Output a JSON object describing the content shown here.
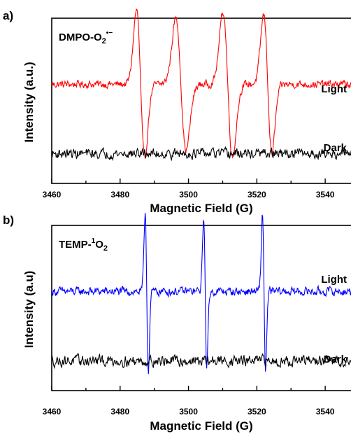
{
  "chart_data": [
    {
      "panel_label": "a)",
      "type": "line",
      "species_label": {
        "base": "DMPO-O",
        "sub": "2",
        "sup": "•−"
      },
      "xlabel": "Magnetic Field (G)",
      "ylabel": "Intensity (a.u.)",
      "xlim": [
        3460,
        3550
      ],
      "xticks": [
        "3460",
        "3480",
        "3500",
        "3520",
        "3540"
      ],
      "y_ticks_shown": false,
      "series": [
        {
          "name": "Light",
          "color": "#ff0000",
          "baseline": 0.6,
          "noise": 0.035,
          "signals": [
            {
              "center": 3486.0,
              "width": 1.2,
              "amp": 0.45
            },
            {
              "center": 3497.8,
              "width": 1.5,
              "amp": 0.4
            },
            {
              "center": 3511.5,
              "width": 1.4,
              "amp": 0.44
            },
            {
              "center": 3523.2,
              "width": 1.2,
              "amp": 0.42
            }
          ]
        },
        {
          "name": "Dark",
          "color": "#000000",
          "baseline": 0.18,
          "noise": 0.045,
          "signals": []
        }
      ]
    },
    {
      "panel_label": "b)",
      "type": "line",
      "species_label": {
        "base": "TEMP-",
        "sup": "1",
        "tail": "O",
        "sub": "2"
      },
      "xlabel": "Magnetic Field (G)",
      "ylabel": "Intensity (a.u)",
      "xlim": [
        3460,
        3550
      ],
      "xticks": [
        "3460",
        "3480",
        "3500",
        "3520",
        "3540"
      ],
      "y_ticks_shown": false,
      "series": [
        {
          "name": "Light",
          "color": "#0000ff",
          "baseline": 0.6,
          "noise": 0.04,
          "signals": [
            {
              "center": 3487.8,
              "width": 0.45,
              "amp": 0.48
            },
            {
              "center": 3504.9,
              "width": 0.45,
              "amp": 0.46
            },
            {
              "center": 3522.1,
              "width": 0.45,
              "amp": 0.47
            }
          ]
        },
        {
          "name": "Dark",
          "color": "#000000",
          "baseline": 0.18,
          "noise": 0.05,
          "signals": []
        }
      ]
    }
  ]
}
